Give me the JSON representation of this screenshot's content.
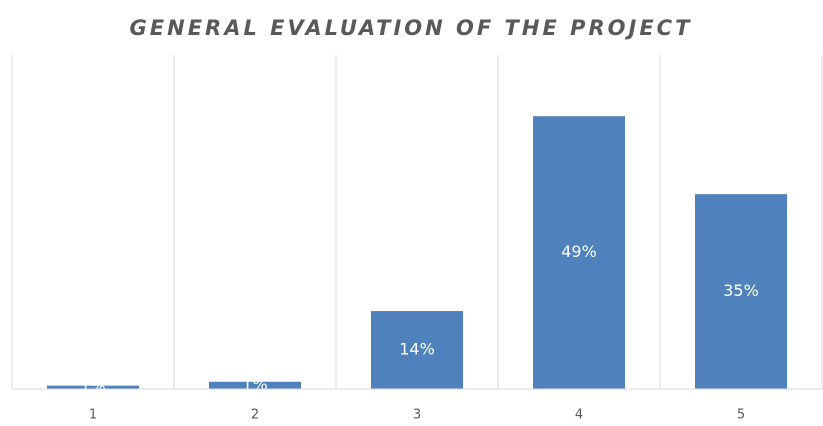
{
  "chart_data": {
    "type": "bar",
    "title": "GENERAL EVALUATION OF THE PROJECT",
    "categories": [
      "1",
      "2",
      "3",
      "4",
      "5"
    ],
    "values": [
      0.6,
      1.3,
      14,
      49,
      35
    ],
    "value_labels": [
      "1%",
      "1%",
      "14%",
      "49%",
      "35%"
    ],
    "color": "#4f81bd",
    "ylim": [
      0,
      60
    ]
  }
}
